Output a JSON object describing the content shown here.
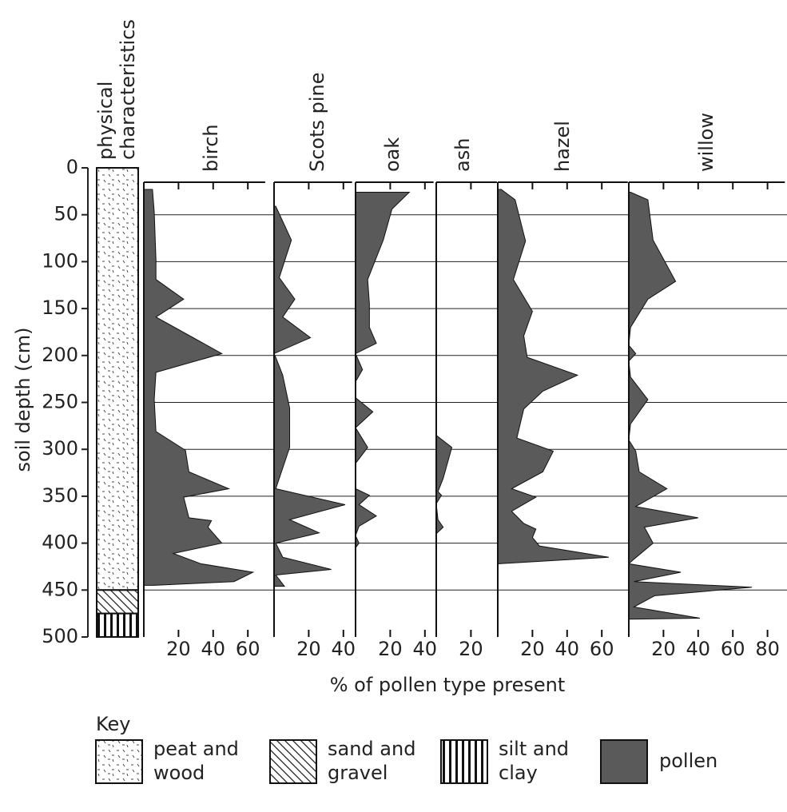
{
  "chart_data": {
    "type": "pollen",
    "ylabel": "soil depth (cm)",
    "xlabel": "% of pollen type present",
    "ylim": [
      0,
      500
    ],
    "yticks": [
      0,
      50,
      100,
      150,
      200,
      250,
      300,
      350,
      400,
      450,
      500
    ],
    "grid": true,
    "column_title": [
      "physical",
      "characteristics"
    ],
    "strata": [
      {
        "name": [
          "peat and",
          "wood"
        ],
        "pattern": "dashes",
        "top": 0,
        "bottom": 450
      },
      {
        "name": [
          "sand and",
          "gravel"
        ],
        "pattern": "diagonal",
        "top": 450,
        "bottom": 475
      },
      {
        "name": [
          "silt and",
          "clay"
        ],
        "pattern": "vertical",
        "top": 475,
        "bottom": 500
      }
    ],
    "key_title": "Key",
    "key_pollen": "pollen",
    "pollen_color": "#5a5a5a",
    "series": [
      {
        "name": "birch",
        "xlim": [
          0,
          70
        ],
        "xticks": [
          20,
          40,
          60
        ],
        "depth": [
          23,
          47,
          98,
          119,
          140,
          159,
          198,
          218,
          247,
          281,
          301,
          324,
          342,
          351,
          373,
          376,
          383,
          400,
          411,
          422,
          431,
          441,
          445
        ],
        "values": [
          5,
          6,
          7,
          7,
          23,
          7,
          45,
          7,
          6,
          7,
          24,
          26,
          49,
          23,
          26,
          39,
          37,
          45,
          17,
          33,
          63,
          52,
          6
        ]
      },
      {
        "name": "Scots pine",
        "xlim": [
          0,
          45
        ],
        "xticks": [
          20,
          40
        ],
        "depth": [
          41,
          77,
          117,
          140,
          159,
          181,
          198,
          202,
          221,
          256,
          298,
          342,
          359,
          375,
          389,
          400,
          415,
          428,
          434,
          446
        ],
        "values": [
          1,
          10,
          3,
          12,
          5,
          21,
          0,
          1,
          5,
          9,
          9,
          1,
          41,
          9,
          26,
          1,
          5,
          33,
          1,
          6
        ]
      },
      {
        "name": "oak",
        "xlim": [
          0,
          45
        ],
        "xticks": [
          20,
          40
        ],
        "depth": [
          26,
          44,
          77,
          119,
          145,
          170,
          187,
          198,
          215,
          228,
          245,
          260,
          277,
          298,
          315,
          342,
          349,
          359,
          371,
          382,
          392,
          400,
          405
        ],
        "values": [
          31,
          21,
          16,
          7,
          8,
          8,
          12,
          0,
          4,
          0,
          0,
          10,
          0,
          7,
          0,
          0,
          8,
          2,
          12,
          2,
          0,
          2,
          0
        ]
      },
      {
        "name": "ash",
        "xlim": [
          0,
          35
        ],
        "xticks": [
          20
        ],
        "depth": [
          285,
          298,
          331,
          345,
          349,
          358,
          375,
          383,
          390
        ],
        "values": [
          0,
          9,
          4,
          1,
          3,
          0,
          1,
          4,
          0
        ]
      },
      {
        "name": "hazel",
        "xlim": [
          0,
          75
        ],
        "xticks": [
          20,
          40,
          60
        ],
        "depth": [
          23,
          34,
          78,
          119,
          153,
          179,
          202,
          221,
          238,
          257,
          288,
          302,
          324,
          342,
          351,
          366,
          379,
          385,
          394,
          403,
          415,
          422
        ],
        "values": [
          2,
          10,
          16,
          9,
          20,
          15,
          17,
          46,
          26,
          15,
          11,
          32,
          26,
          8,
          22,
          8,
          15,
          22,
          20,
          24,
          64,
          0
        ]
      },
      {
        "name": "willow",
        "xlim": [
          0,
          90
        ],
        "xticks": [
          20,
          40,
          60,
          80
        ],
        "depth": [
          26,
          34,
          77,
          121,
          140,
          170,
          189,
          198,
          206,
          223,
          247,
          273,
          290,
          302,
          324,
          342,
          361,
          373,
          383,
          400,
          417,
          422,
          431,
          441,
          447,
          456,
          468,
          480,
          481
        ],
        "values": [
          1,
          11,
          14,
          27,
          11,
          1,
          0,
          4,
          0,
          1,
          11,
          1,
          0,
          4,
          6,
          22,
          4,
          40,
          9,
          14,
          3,
          0,
          30,
          3,
          71,
          15,
          3,
          41,
          0
        ]
      }
    ]
  }
}
